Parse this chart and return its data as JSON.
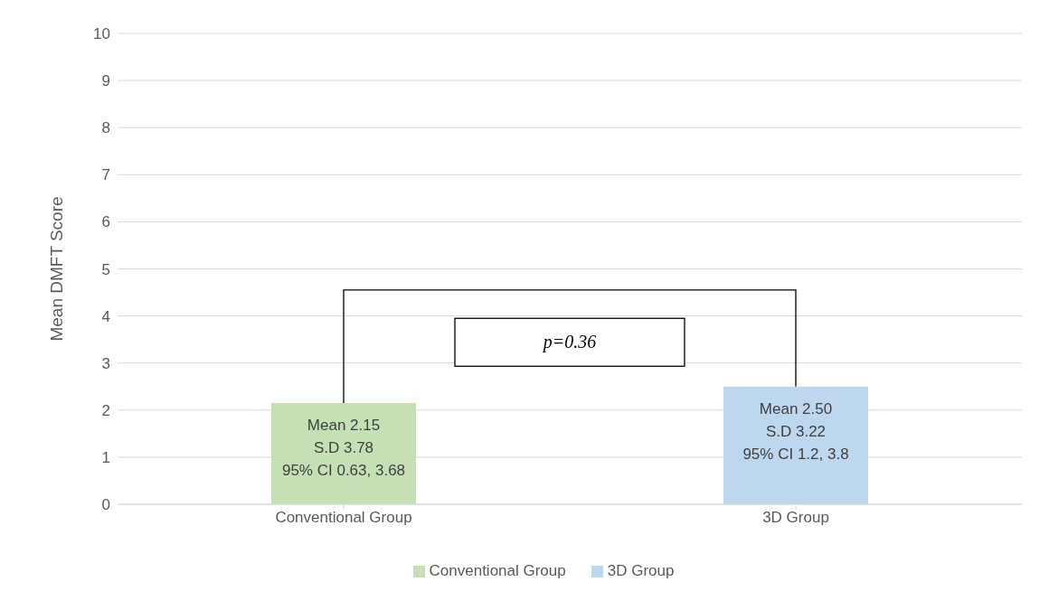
{
  "chart_data": {
    "type": "bar",
    "ylabel": "Mean DMFT Score",
    "categories": [
      "Conventional Group",
      "3D Group"
    ],
    "series": [
      {
        "name": "Conventional Group",
        "color": "#c5e0b4",
        "values": [
          2.15,
          null
        ]
      },
      {
        "name": "3D Group",
        "color": "#bdd7ee",
        "values": [
          null,
          2.5
        ]
      }
    ],
    "stacked": true,
    "ylim": [
      0,
      10
    ],
    "yticks": [
      0,
      1,
      2,
      3,
      4,
      5,
      6,
      7,
      8,
      9,
      10
    ],
    "grid": "y",
    "legend": "bottom",
    "annotations": [
      {
        "text": "Mean 2.15\nS.D 3.78\n95% CI 0.63, 3.68",
        "x": "Conventional Group",
        "y": 2.15
      },
      {
        "text": "Mean 2.50\nS.D 3.22\n95% CI 1.2, 3.8",
        "x": "3D Group",
        "y": 2.5
      },
      "p=0.36"
    ]
  }
}
